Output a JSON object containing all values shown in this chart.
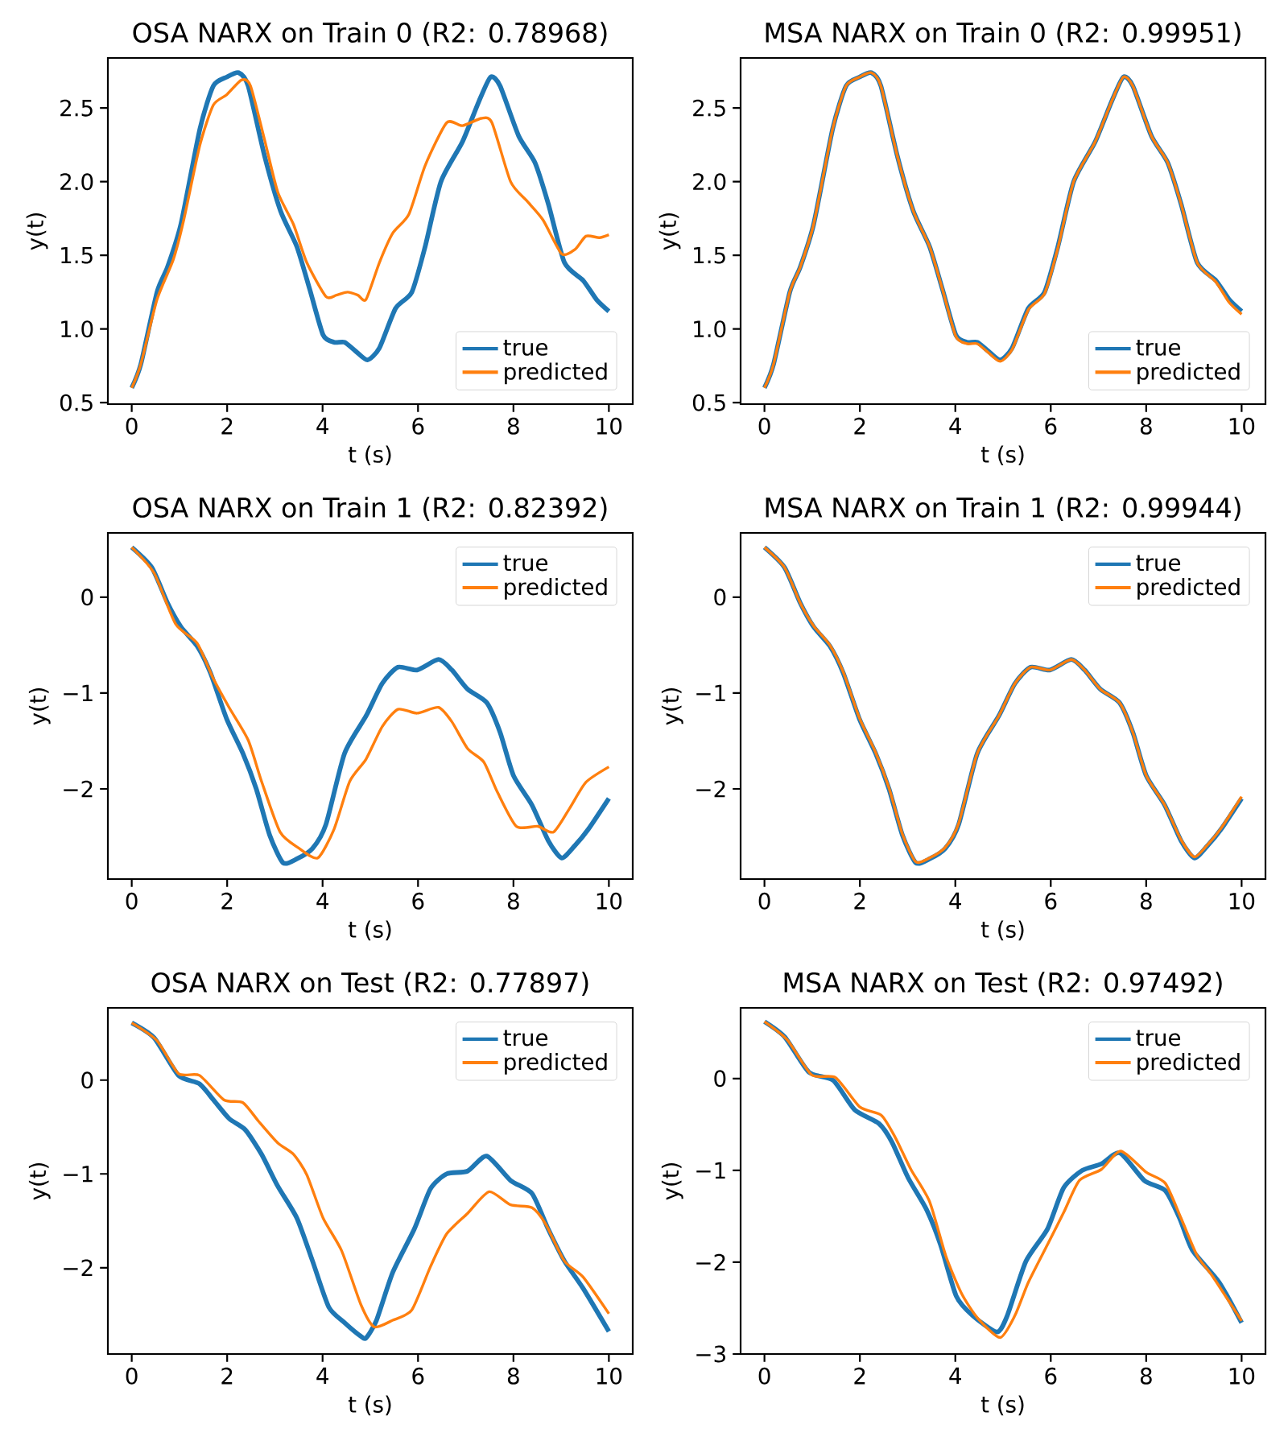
{
  "chart_data": [
    {
      "type": "line",
      "title": "OSA NARX on Train 0 (R2: 0.78968)",
      "xlabel": "t (s)",
      "ylabel": "y(t)",
      "xlim": [
        -0.5,
        10.5
      ],
      "ylim": [
        0.49,
        2.84
      ],
      "xticks": [
        0,
        2,
        4,
        6,
        8,
        10
      ],
      "yticks": [
        {
          "value": 0.5,
          "label": "0.5"
        },
        {
          "value": 1,
          "label": "1.0"
        },
        {
          "value": 1.5,
          "label": "1.5"
        },
        {
          "value": 2,
          "label": "2.0"
        },
        {
          "value": 2.5,
          "label": "2.5"
        }
      ],
      "legend": "bottom right",
      "series": [
        {
          "name": "true",
          "color": "#1f77b4",
          "x": [
            0,
            0.19,
            0.53,
            0.75,
            1.03,
            1.43,
            1.71,
            1.99,
            2.24,
            2.44,
            2.78,
            3.12,
            3.46,
            3.73,
            4.01,
            4.24,
            4.46,
            4.69,
            4.94,
            5.19,
            5.53,
            5.87,
            6.15,
            6.48,
            6.93,
            7.27,
            7.52,
            7.72,
            8.11,
            8.45,
            8.73,
            9.07,
            9.46,
            9.74,
            10
          ],
          "values": [
            0.6,
            0.76,
            1.25,
            1.42,
            1.71,
            2.36,
            2.65,
            2.71,
            2.74,
            2.65,
            2.18,
            1.8,
            1.56,
            1.27,
            0.96,
            0.91,
            0.91,
            0.85,
            0.79,
            0.87,
            1.14,
            1.25,
            1.56,
            2.0,
            2.27,
            2.54,
            2.71,
            2.65,
            2.31,
            2.13,
            1.85,
            1.45,
            1.33,
            1.2,
            1.12
          ]
        },
        {
          "name": "predicted",
          "color": "#ff7f0e",
          "x": [
            0,
            0.19,
            0.53,
            0.87,
            1.09,
            1.43,
            1.71,
            1.99,
            2.3,
            2.49,
            2.78,
            3.06,
            3.39,
            3.67,
            4.07,
            4.29,
            4.52,
            4.74,
            4.91,
            5.19,
            5.47,
            5.81,
            6.15,
            6.6,
            6.93,
            7.33,
            7.55,
            7.94,
            8.28,
            8.62,
            9.01,
            9.29,
            9.52,
            9.8,
            10
          ],
          "values": [
            0.6,
            0.76,
            1.2,
            1.47,
            1.74,
            2.25,
            2.52,
            2.59,
            2.69,
            2.65,
            2.29,
            1.93,
            1.71,
            1.45,
            1.22,
            1.23,
            1.25,
            1.23,
            1.2,
            1.45,
            1.65,
            1.78,
            2.11,
            2.4,
            2.38,
            2.43,
            2.4,
            2.0,
            1.87,
            1.74,
            1.51,
            1.54,
            1.63,
            1.62,
            1.64
          ]
        }
      ]
    },
    {
      "type": "line",
      "title": "MSA NARX on Train 0 (R2: 0.99951)",
      "xlabel": "t (s)",
      "ylabel": "y(t)",
      "xlim": [
        -0.5,
        10.5
      ],
      "ylim": [
        0.49,
        2.84
      ],
      "xticks": [
        0,
        2,
        4,
        6,
        8,
        10
      ],
      "yticks": [
        {
          "value": 0.5,
          "label": "0.5"
        },
        {
          "value": 1,
          "label": "1.0"
        },
        {
          "value": 1.5,
          "label": "1.5"
        },
        {
          "value": 2,
          "label": "2.0"
        },
        {
          "value": 2.5,
          "label": "2.5"
        }
      ],
      "legend": "bottom right",
      "series": [
        {
          "name": "true",
          "color": "#1f77b4",
          "x": [
            0,
            0.19,
            0.53,
            0.75,
            1.03,
            1.43,
            1.71,
            1.99,
            2.24,
            2.44,
            2.78,
            3.12,
            3.46,
            3.73,
            4.01,
            4.24,
            4.46,
            4.69,
            4.94,
            5.19,
            5.53,
            5.87,
            6.15,
            6.48,
            6.93,
            7.27,
            7.52,
            7.72,
            8.11,
            8.45,
            8.73,
            9.07,
            9.46,
            9.74,
            10
          ],
          "values": [
            0.6,
            0.76,
            1.25,
            1.42,
            1.71,
            2.36,
            2.65,
            2.71,
            2.74,
            2.65,
            2.18,
            1.8,
            1.56,
            1.27,
            0.96,
            0.91,
            0.91,
            0.85,
            0.79,
            0.87,
            1.14,
            1.25,
            1.56,
            2.0,
            2.27,
            2.54,
            2.71,
            2.65,
            2.31,
            2.13,
            1.85,
            1.45,
            1.33,
            1.2,
            1.12
          ]
        },
        {
          "name": "predicted",
          "color": "#ff7f0e",
          "x": [
            0,
            0.19,
            0.53,
            0.75,
            1.03,
            1.43,
            1.71,
            1.99,
            2.24,
            2.44,
            2.78,
            3.12,
            3.46,
            3.73,
            4.01,
            4.24,
            4.46,
            4.69,
            4.94,
            5.19,
            5.53,
            5.87,
            6.15,
            6.48,
            6.93,
            7.27,
            7.52,
            7.72,
            8.11,
            8.45,
            8.73,
            9.07,
            9.46,
            9.74,
            10
          ],
          "values": [
            0.6,
            0.76,
            1.25,
            1.42,
            1.71,
            2.36,
            2.65,
            2.71,
            2.74,
            2.65,
            2.18,
            1.8,
            1.56,
            1.27,
            0.95,
            0.9,
            0.9,
            0.84,
            0.78,
            0.86,
            1.13,
            1.24,
            1.55,
            2.0,
            2.27,
            2.54,
            2.71,
            2.65,
            2.31,
            2.13,
            1.85,
            1.45,
            1.32,
            1.18,
            1.1
          ]
        }
      ]
    },
    {
      "type": "line",
      "title": "OSA NARX on Train 1 (R2: 0.82392)",
      "xlabel": "t (s)",
      "ylabel": "y(t)",
      "xlim": [
        -0.5,
        10.5
      ],
      "ylim": [
        -2.94,
        0.67
      ],
      "xticks": [
        0,
        2,
        4,
        6,
        8,
        10
      ],
      "yticks": [
        {
          "value": -2,
          "label": "−2"
        },
        {
          "value": -1,
          "label": "−1"
        },
        0
      ],
      "legend": "top right",
      "series": [
        {
          "name": "true",
          "color": "#1f77b4",
          "x": [
            0,
            0.42,
            0.75,
            1.03,
            1.37,
            1.65,
            1.99,
            2.33,
            2.61,
            2.89,
            3.17,
            3.46,
            3.79,
            4.07,
            4.46,
            4.91,
            5.25,
            5.58,
            5.98,
            6.43,
            6.71,
            7.04,
            7.44,
            7.72,
            8.0,
            8.39,
            8.73,
            9.01,
            9.29,
            9.57,
            10
          ],
          "values": [
            0.52,
            0.31,
            -0.06,
            -0.31,
            -0.51,
            -0.79,
            -1.27,
            -1.63,
            -2.0,
            -2.48,
            -2.77,
            -2.73,
            -2.62,
            -2.37,
            -1.63,
            -1.24,
            -0.9,
            -0.73,
            -0.76,
            -0.65,
            -0.76,
            -0.96,
            -1.1,
            -1.41,
            -1.86,
            -2.17,
            -2.54,
            -2.72,
            -2.59,
            -2.42,
            -2.1
          ]
        },
        {
          "name": "predicted",
          "color": "#ff7f0e",
          "x": [
            0,
            0.47,
            0.92,
            1.37,
            1.71,
            2.04,
            2.44,
            2.72,
            3.11,
            3.51,
            3.9,
            4.24,
            4.57,
            4.91,
            5.25,
            5.58,
            5.98,
            6.43,
            6.71,
            7.04,
            7.38,
            7.66,
            8.06,
            8.51,
            8.84,
            9.18,
            9.52,
            10
          ],
          "values": [
            0.52,
            0.25,
            -0.28,
            -0.48,
            -0.85,
            -1.15,
            -1.49,
            -1.92,
            -2.45,
            -2.62,
            -2.72,
            -2.42,
            -1.92,
            -1.69,
            -1.35,
            -1.17,
            -1.21,
            -1.15,
            -1.3,
            -1.58,
            -1.72,
            -2.03,
            -2.39,
            -2.39,
            -2.45,
            -2.2,
            -1.93,
            -1.77
          ]
        }
      ]
    },
    {
      "type": "line",
      "title": "MSA NARX on Train 1 (R2: 0.99944)",
      "xlabel": "t (s)",
      "ylabel": "y(t)",
      "xlim": [
        -0.5,
        10.5
      ],
      "ylim": [
        -2.94,
        0.67
      ],
      "xticks": [
        0,
        2,
        4,
        6,
        8,
        10
      ],
      "yticks": [
        {
          "value": -2,
          "label": "−2"
        },
        {
          "value": -1,
          "label": "−1"
        },
        0
      ],
      "legend": "top right",
      "series": [
        {
          "name": "true",
          "color": "#1f77b4",
          "x": [
            0,
            0.42,
            0.75,
            1.03,
            1.37,
            1.65,
            1.99,
            2.33,
            2.61,
            2.89,
            3.17,
            3.46,
            3.79,
            4.07,
            4.46,
            4.91,
            5.25,
            5.58,
            5.98,
            6.43,
            6.71,
            7.04,
            7.44,
            7.72,
            8.0,
            8.39,
            8.73,
            9.01,
            9.29,
            9.57,
            10
          ],
          "values": [
            0.52,
            0.31,
            -0.06,
            -0.31,
            -0.51,
            -0.79,
            -1.27,
            -1.63,
            -2.0,
            -2.48,
            -2.77,
            -2.73,
            -2.62,
            -2.37,
            -1.63,
            -1.24,
            -0.9,
            -0.73,
            -0.76,
            -0.65,
            -0.76,
            -0.96,
            -1.1,
            -1.41,
            -1.86,
            -2.17,
            -2.54,
            -2.72,
            -2.59,
            -2.42,
            -2.1
          ]
        },
        {
          "name": "predicted",
          "color": "#ff7f0e",
          "x": [
            0,
            0.42,
            0.75,
            1.03,
            1.37,
            1.65,
            1.99,
            2.33,
            2.61,
            2.89,
            3.17,
            3.46,
            3.79,
            4.07,
            4.46,
            4.91,
            5.25,
            5.58,
            5.98,
            6.43,
            6.71,
            7.04,
            7.44,
            7.72,
            8.0,
            8.39,
            8.73,
            9.01,
            9.29,
            9.57,
            10
          ],
          "values": [
            0.52,
            0.31,
            -0.06,
            -0.3,
            -0.5,
            -0.78,
            -1.26,
            -1.62,
            -1.99,
            -2.47,
            -2.76,
            -2.72,
            -2.61,
            -2.36,
            -1.63,
            -1.24,
            -0.9,
            -0.73,
            -0.76,
            -0.65,
            -0.76,
            -0.96,
            -1.1,
            -1.41,
            -1.86,
            -2.17,
            -2.53,
            -2.71,
            -2.58,
            -2.41,
            -2.08
          ]
        }
      ]
    },
    {
      "type": "line",
      "title": "OSA NARX on Test (R2: 0.77897)",
      "xlabel": "t (s)",
      "ylabel": "y(t)",
      "xlim": [
        -0.5,
        10.5
      ],
      "ylim": [
        -2.92,
        0.77
      ],
      "xticks": [
        0,
        2,
        4,
        6,
        8,
        10
      ],
      "yticks": [
        {
          "value": -2,
          "label": "−2"
        },
        {
          "value": -1,
          "label": "−1"
        },
        0
      ],
      "legend": "top right",
      "series": [
        {
          "name": "true",
          "color": "#1f77b4",
          "x": [
            0,
            0.47,
            0.98,
            1.42,
            1.71,
            2.04,
            2.38,
            2.72,
            3.06,
            3.46,
            3.79,
            4.13,
            4.47,
            4.8,
            4.91,
            5.13,
            5.47,
            5.92,
            6.26,
            6.6,
            7.04,
            7.44,
            7.94,
            8.39,
            8.73,
            9.07,
            9.46,
            10
          ],
          "values": [
            0.61,
            0.45,
            0.05,
            -0.04,
            -0.21,
            -0.41,
            -0.53,
            -0.79,
            -1.13,
            -1.47,
            -1.93,
            -2.42,
            -2.59,
            -2.73,
            -2.75,
            -2.56,
            -2.05,
            -1.59,
            -1.16,
            -1.0,
            -0.97,
            -0.81,
            -1.07,
            -1.21,
            -1.59,
            -1.93,
            -2.22,
            -2.68
          ]
        },
        {
          "name": "predicted",
          "color": "#ff7f0e",
          "x": [
            0,
            0.53,
            0.98,
            1.42,
            1.93,
            2.33,
            2.66,
            3.06,
            3.39,
            3.67,
            4.01,
            4.4,
            4.8,
            5.08,
            5.47,
            5.87,
            6.26,
            6.6,
            7.04,
            7.49,
            7.94,
            8.39,
            8.67,
            9.07,
            9.46,
            10
          ],
          "values": [
            0.61,
            0.42,
            0.07,
            0.05,
            -0.21,
            -0.24,
            -0.44,
            -0.67,
            -0.79,
            -1.01,
            -1.47,
            -1.82,
            -2.39,
            -2.63,
            -2.56,
            -2.45,
            -1.99,
            -1.64,
            -1.42,
            -1.19,
            -1.33,
            -1.36,
            -1.53,
            -1.93,
            -2.1,
            -2.49
          ]
        }
      ]
    },
    {
      "type": "line",
      "title": "MSA NARX on Test (R2: 0.97492)",
      "xlabel": "t (s)",
      "ylabel": "y(t)",
      "xlim": [
        -0.5,
        10.5
      ],
      "ylim": [
        -3.0,
        0.77
      ],
      "xticks": [
        0,
        2,
        4,
        6,
        8,
        10
      ],
      "yticks": [
        {
          "value": -3,
          "label": "−3"
        },
        {
          "value": -2,
          "label": "−2"
        },
        {
          "value": -1,
          "label": "−1"
        },
        0
      ],
      "legend": "top right",
      "series": [
        {
          "name": "true",
          "color": "#1f77b4",
          "x": [
            0,
            0.43,
            0.93,
            1.44,
            1.89,
            2.4,
            2.67,
            3.01,
            3.4,
            3.69,
            4.02,
            4.36,
            4.87,
            5.09,
            5.48,
            5.93,
            6.27,
            6.66,
            7.06,
            7.45,
            7.96,
            8.4,
            8.7,
            8.97,
            9.53,
            10
          ],
          "values": [
            0.62,
            0.45,
            0.07,
            -0.02,
            -0.34,
            -0.49,
            -0.69,
            -1.08,
            -1.43,
            -1.81,
            -2.37,
            -2.58,
            -2.76,
            -2.58,
            -1.99,
            -1.64,
            -1.19,
            -1.0,
            -0.93,
            -0.81,
            -1.11,
            -1.22,
            -1.52,
            -1.87,
            -2.22,
            -2.66
          ]
        },
        {
          "name": "predicted",
          "color": "#ff7f0e",
          "x": [
            0,
            0.48,
            0.99,
            1.49,
            2.0,
            2.45,
            2.74,
            3.07,
            3.46,
            3.8,
            4.13,
            4.47,
            4.94,
            5.25,
            5.53,
            5.93,
            6.27,
            6.6,
            7.06,
            7.47,
            8.0,
            8.4,
            8.73,
            9.07,
            9.4,
            10
          ],
          "values": [
            0.62,
            0.42,
            0.04,
            0.01,
            -0.31,
            -0.4,
            -0.64,
            -0.99,
            -1.34,
            -1.93,
            -2.34,
            -2.61,
            -2.82,
            -2.58,
            -2.22,
            -1.81,
            -1.46,
            -1.11,
            -0.99,
            -0.79,
            -1.02,
            -1.14,
            -1.52,
            -1.93,
            -2.16,
            -2.64
          ]
        }
      ]
    }
  ]
}
